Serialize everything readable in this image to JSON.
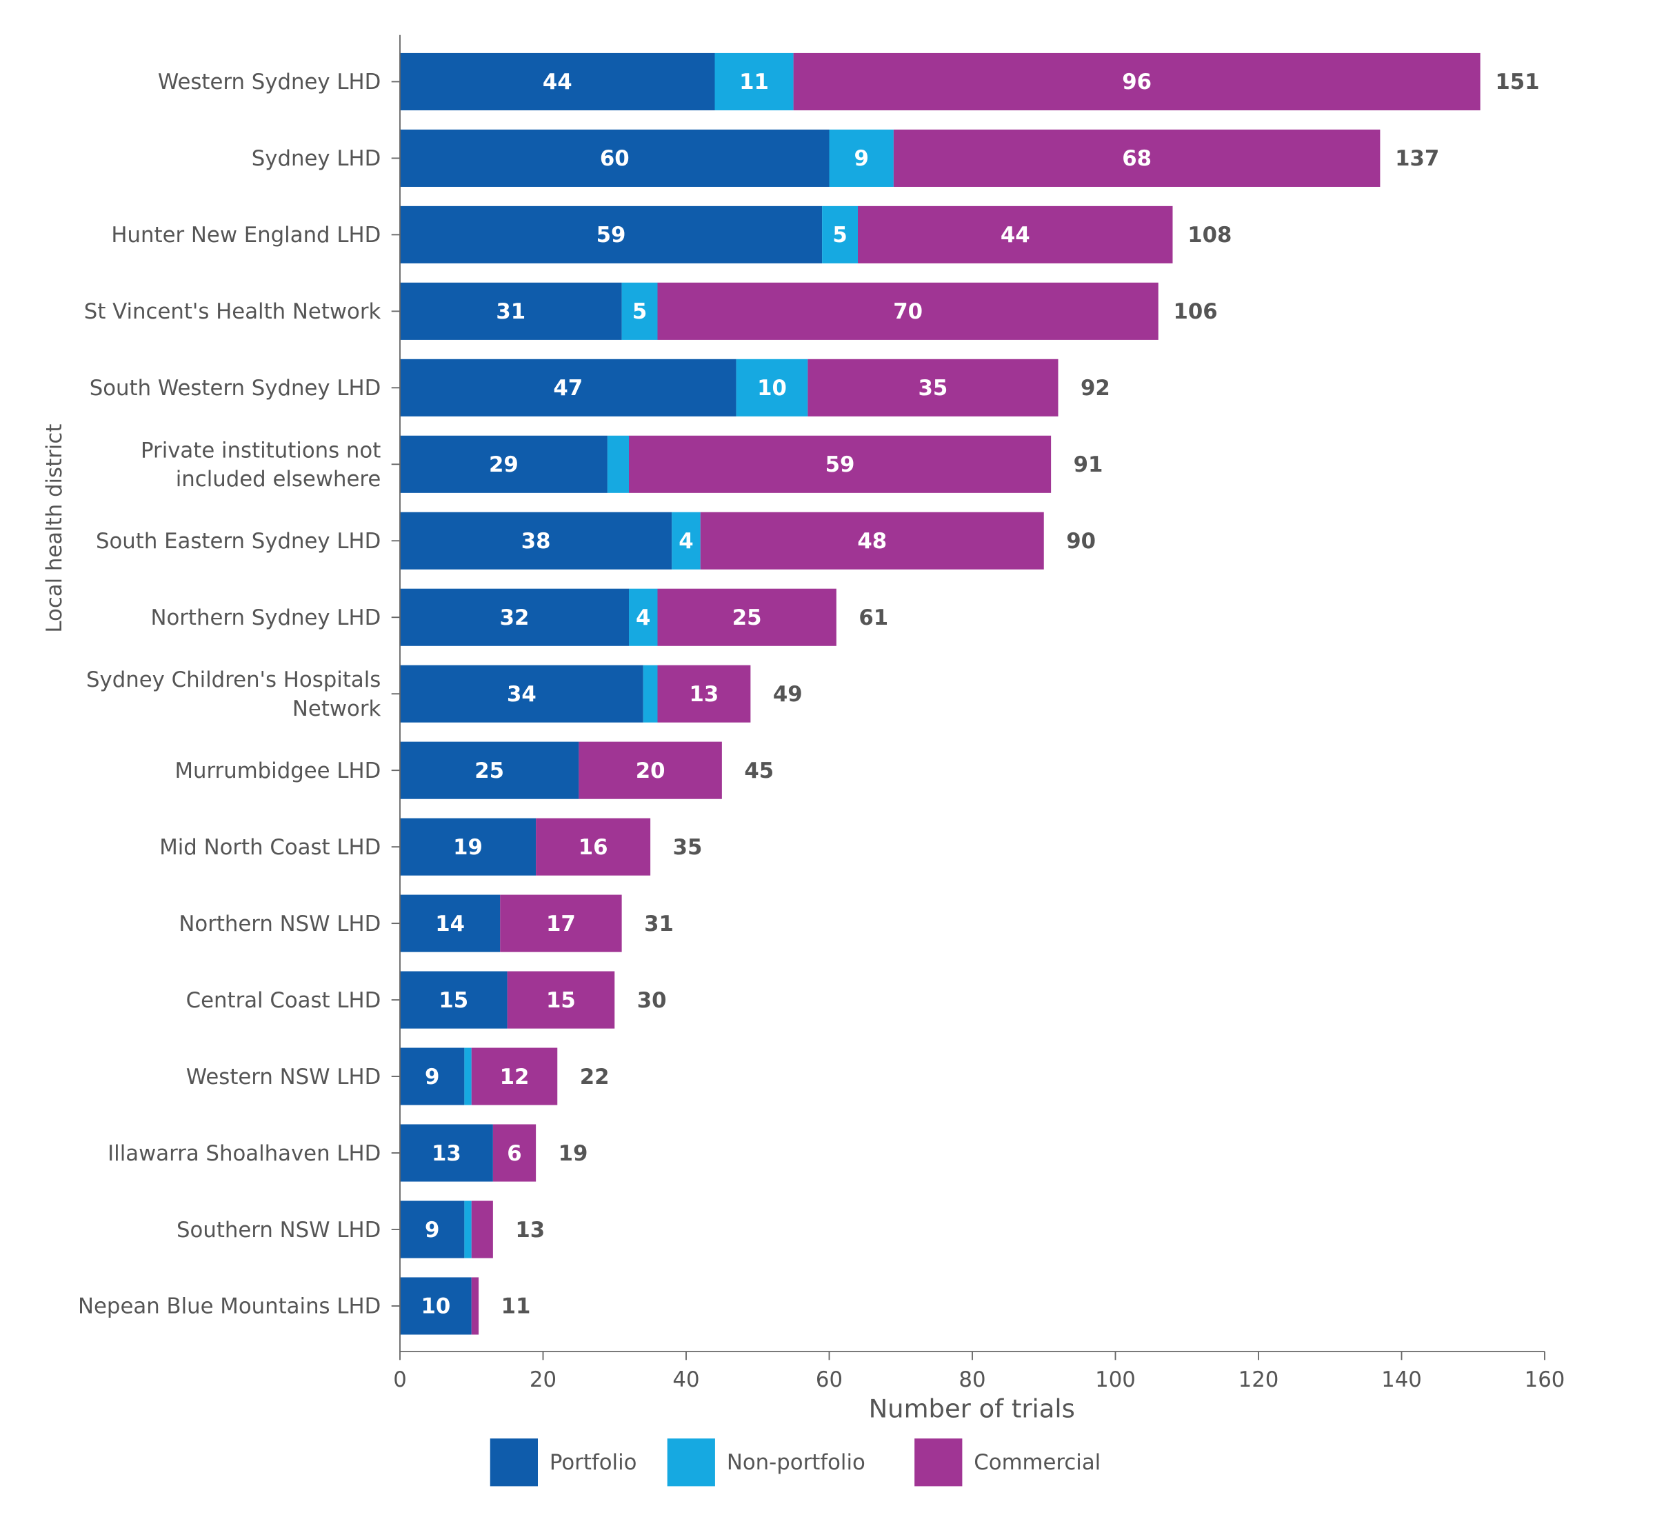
{
  "chart_data": {
    "type": "bar",
    "orientation": "horizontal",
    "stacked": true,
    "title": "",
    "xlabel": "Number of trials",
    "ylabel": "Local health district",
    "xlim": [
      0,
      160
    ],
    "xticks": [
      0,
      20,
      40,
      60,
      80,
      100,
      120,
      140,
      160
    ],
    "grid": false,
    "legend_position": "bottom",
    "categories": [
      "Western Sydney LHD",
      "Sydney LHD",
      "Hunter New England LHD",
      "St Vincent's Health Network",
      "South Western Sydney LHD",
      "Private institutions not|included elsewhere",
      "South Eastern Sydney LHD",
      "Northern Sydney LHD",
      "Sydney Children's Hospitals|Network",
      "Murrumbidgee LHD",
      "Mid North Coast LHD",
      "Northern NSW LHD",
      "Central Coast LHD",
      "Western NSW LHD",
      "Illawarra Shoalhaven LHD",
      "Southern NSW LHD",
      "Nepean Blue Mountains LHD"
    ],
    "series": [
      {
        "name": "Portfolio",
        "color": "#0f5cab",
        "values": [
          44,
          60,
          59,
          31,
          47,
          29,
          38,
          32,
          34,
          25,
          19,
          14,
          15,
          9,
          13,
          9,
          10
        ]
      },
      {
        "name": "Non-portfolio",
        "color": "#16a9e1",
        "values": [
          11,
          9,
          5,
          5,
          10,
          3,
          4,
          4,
          2,
          0,
          0,
          0,
          0,
          1,
          0,
          1,
          0
        ]
      },
      {
        "name": "Commercial",
        "color": "#a03594",
        "values": [
          96,
          68,
          44,
          70,
          35,
          59,
          48,
          25,
          13,
          20,
          16,
          17,
          15,
          12,
          6,
          3,
          1
        ]
      }
    ],
    "totals": [
      151,
      137,
      108,
      106,
      92,
      91,
      90,
      61,
      49,
      45,
      35,
      31,
      30,
      22,
      19,
      13,
      11
    ]
  }
}
